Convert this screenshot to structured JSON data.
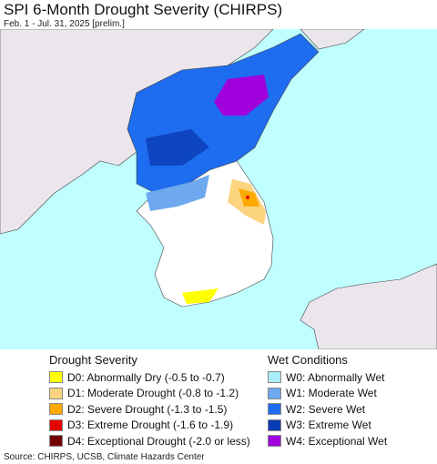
{
  "header": {
    "title": "SPI 6-Month Drought Severity (CHIRPS)",
    "subtitle": "Feb. 1 - Jul. 31, 2025 [prelim.]"
  },
  "legend": {
    "drought": {
      "title": "Drought Severity",
      "items": [
        {
          "label": "D0: Abnormally Dry (-0.5 to -0.7)",
          "color": "#ffff00"
        },
        {
          "label": "D1: Moderate Drought (-0.8 to -1.2)",
          "color": "#fcd37f"
        },
        {
          "label": "D2: Severe Drought (-1.3 to -1.5)",
          "color": "#ffaa00"
        },
        {
          "label": "D3: Extreme Drought (-1.6 to -1.9)",
          "color": "#e60000"
        },
        {
          "label": "D4: Exceptional Drought (-2.0 or less)",
          "color": "#730000"
        }
      ]
    },
    "wet": {
      "title": "Wet Conditions",
      "items": [
        {
          "label": "W0: Abnormally Wet",
          "color": "#aaeefa"
        },
        {
          "label": "W1: Moderate Wet",
          "color": "#6ea8ee"
        },
        {
          "label": "W2: Severe Wet",
          "color": "#1e6cf0"
        },
        {
          "label": "W3: Extreme Wet",
          "color": "#0a3cb4"
        },
        {
          "label": "W4: Exceptional Wet",
          "color": "#a000dc"
        }
      ]
    }
  },
  "source": "Source: CHIRPS, UCSB, Climate Hazards Center"
}
